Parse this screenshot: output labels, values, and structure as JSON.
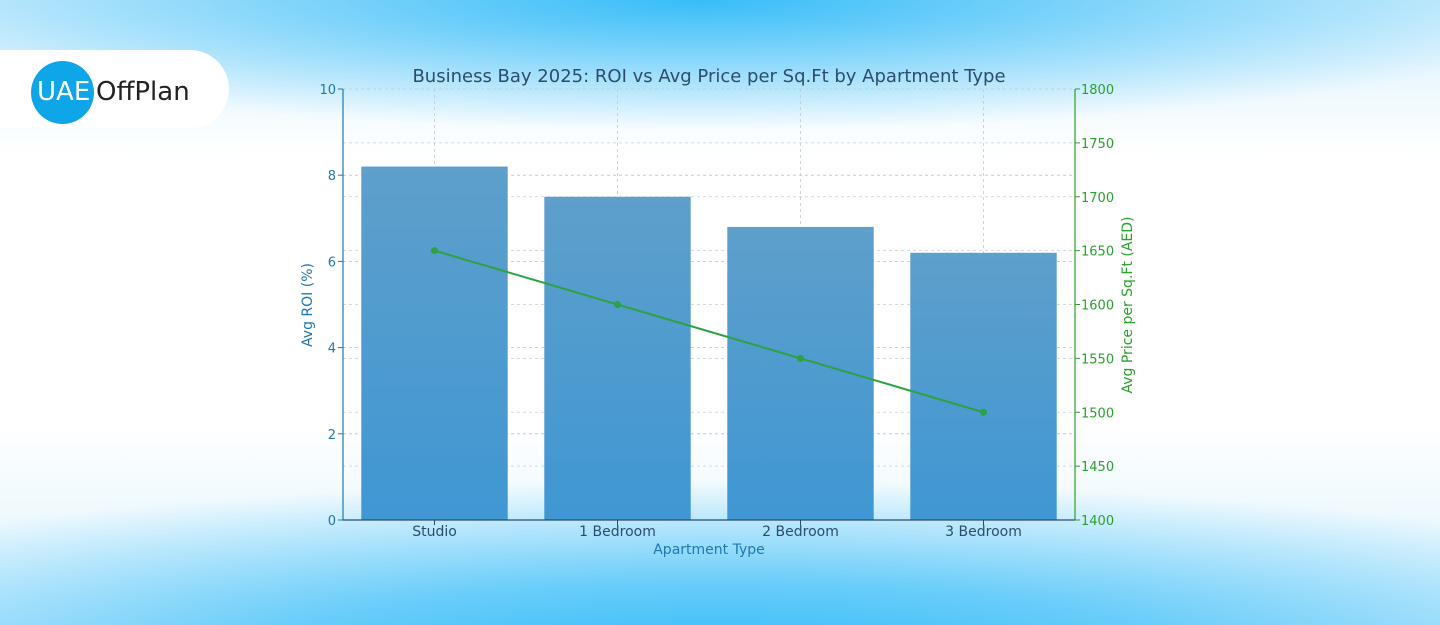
{
  "brand": {
    "logo_circle_text": "UAE",
    "logo_rest_text": "OffPlan",
    "circle_color": "#0ea5e9"
  },
  "chart_data": {
    "type": "bar",
    "title": "Business Bay 2025: ROI vs Avg Price per Sq.Ft by Apartment Type",
    "xlabel": "Apartment Type",
    "ylabel": "Avg ROI (%)",
    "y2label": "Avg Price per Sq.Ft (AED)",
    "categories": [
      "Studio",
      "1 Bedroom",
      "2 Bedroom",
      "3 Bedroom"
    ],
    "ylim": [
      0,
      10
    ],
    "y2lim": [
      1400,
      1800
    ],
    "yticks": [
      0,
      2,
      4,
      6,
      8,
      10
    ],
    "y2ticks": [
      1400,
      1450,
      1500,
      1550,
      1600,
      1650,
      1700,
      1750,
      1800
    ],
    "grid": true,
    "series": [
      {
        "axis": "left",
        "type": "bar",
        "values": [
          8.2,
          7.5,
          6.8,
          6.2
        ],
        "color": "#3b8fc8"
      },
      {
        "axis": "right",
        "type": "line",
        "values": [
          1650,
          1600,
          1550,
          1500
        ],
        "color": "#2ca242"
      }
    ],
    "colors": {
      "left_axis": "#1f77b4",
      "right_axis": "#2ca02c",
      "title": "#2b4c6f"
    }
  }
}
